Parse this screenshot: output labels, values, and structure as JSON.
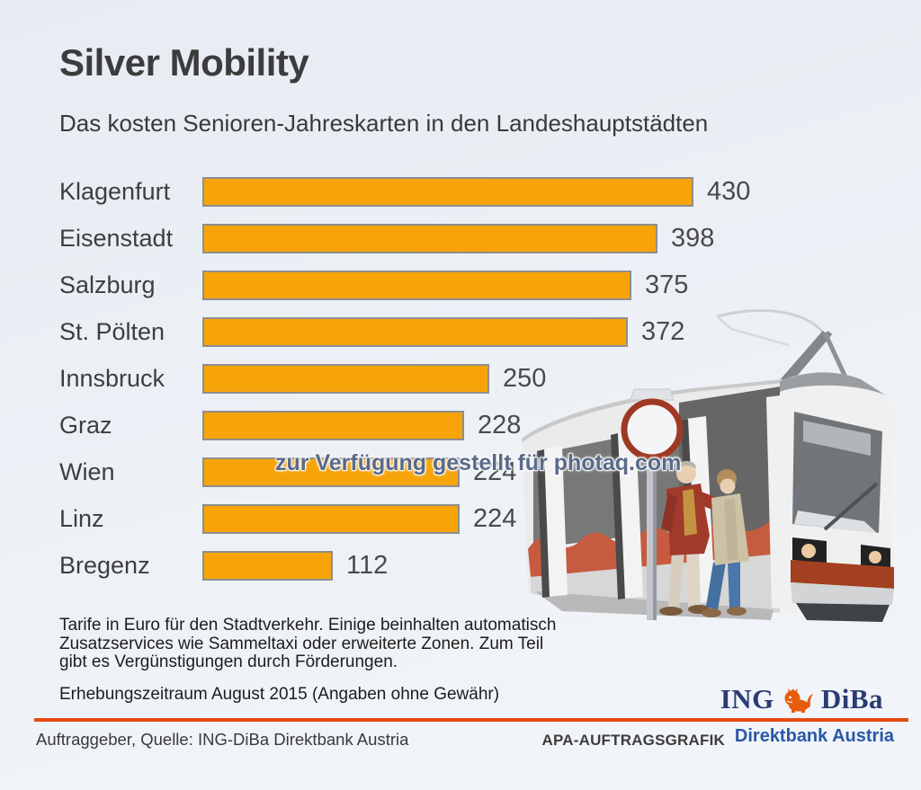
{
  "title": "Silver Mobility",
  "subtitle": "Das kosten Senioren-Jahreskarten in den Landeshauptstädten",
  "watermark": "zur Verfügung gestellt für photaq.com",
  "chart_data": {
    "type": "bar",
    "orientation": "horizontal",
    "title": "Silver Mobility",
    "subtitle": "Das kosten Senioren-Jahreskarten in den Landeshauptstädten",
    "unit": "Euro",
    "categories": [
      "Klagenfurt",
      "Eisenstadt",
      "Salzburg",
      "St. Pölten",
      "Innsbruck",
      "Graz",
      "Wien",
      "Linz",
      "Bregenz"
    ],
    "values": [
      430,
      398,
      375,
      372,
      250,
      228,
      224,
      224,
      112
    ],
    "xlim": [
      0,
      430
    ],
    "grid": false,
    "value_labels": "right of bar"
  },
  "footnote": {
    "text": "Tarife in Euro für den Stadtverkehr. Einige beinhalten automatisch\nZusatzservices wie Sammeltaxi oder erweiterte Zonen. Zum Teil\ngibt es Vergünstigungen durch Förderungen.",
    "period": "Erhebungszeitraum August 2015 (Angaben ohne Gewähr)"
  },
  "footer": {
    "source": "Auftraggeber, Quelle: ING-DiBa Direktbank Austria",
    "agency": "APA-AUFTRAGSGRAFIK",
    "brand_sub": "Direktbank Austria",
    "logo_part1": "ING",
    "logo_part2": "DiBa",
    "lion_icon": "lion-icon"
  },
  "colors": {
    "background": "#EDF1F6",
    "bar": "#F6A408",
    "bar_border": "#8E8E8E",
    "text": "#3E3E3E",
    "watermark": "#5A6A88",
    "divider": "#E8490F",
    "logo_navy": "#2B3B73",
    "lion_orange": "#E85C0D",
    "brand_blue": "#2858A8"
  }
}
